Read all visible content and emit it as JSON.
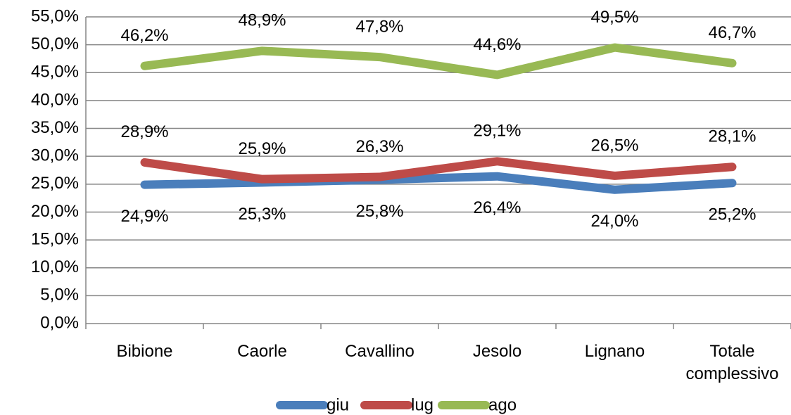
{
  "chart_data": {
    "type": "line",
    "categories": [
      "Bibione",
      "Caorle",
      "Cavallino",
      "Jesolo",
      "Lignano",
      "Totale complessivo"
    ],
    "series": [
      {
        "name": "giu",
        "color": "#4a7ebb",
        "values": [
          24.9,
          25.3,
          25.8,
          26.4,
          24.0,
          25.2
        ],
        "value_labels": [
          "24,9%",
          "25,3%",
          "25,8%",
          "26,4%",
          "24,0%",
          "25,2%"
        ]
      },
      {
        "name": "lug",
        "color": "#be4b48",
        "values": [
          28.9,
          25.9,
          26.3,
          29.1,
          26.5,
          28.1
        ],
        "value_labels": [
          "28,9%",
          "25,9%",
          "26,3%",
          "29,1%",
          "26,5%",
          "28,1%"
        ]
      },
      {
        "name": "ago",
        "color": "#98b954",
        "values": [
          46.2,
          48.9,
          47.8,
          44.6,
          49.5,
          46.7
        ],
        "value_labels": [
          "46,2%",
          "48,9%",
          "47,8%",
          "44,6%",
          "49,5%",
          "46,7%"
        ]
      }
    ],
    "ylim": [
      0,
      55
    ],
    "yticks": [
      {
        "value": 0,
        "label": "0,0%"
      },
      {
        "value": 5,
        "label": "5,0%"
      },
      {
        "value": 10,
        "label": "10,0%"
      },
      {
        "value": 15,
        "label": "15,0%"
      },
      {
        "value": 20,
        "label": "20,0%"
      },
      {
        "value": 25,
        "label": "25,0%"
      },
      {
        "value": 30,
        "label": "30,0%"
      },
      {
        "value": 35,
        "label": "35,0%"
      },
      {
        "value": 40,
        "label": "40,0%"
      },
      {
        "value": 45,
        "label": "45,0%"
      },
      {
        "value": 50,
        "label": "50,0%"
      },
      {
        "value": 55,
        "label": "55,0%"
      }
    ],
    "grid": true,
    "legend": "bottom"
  }
}
